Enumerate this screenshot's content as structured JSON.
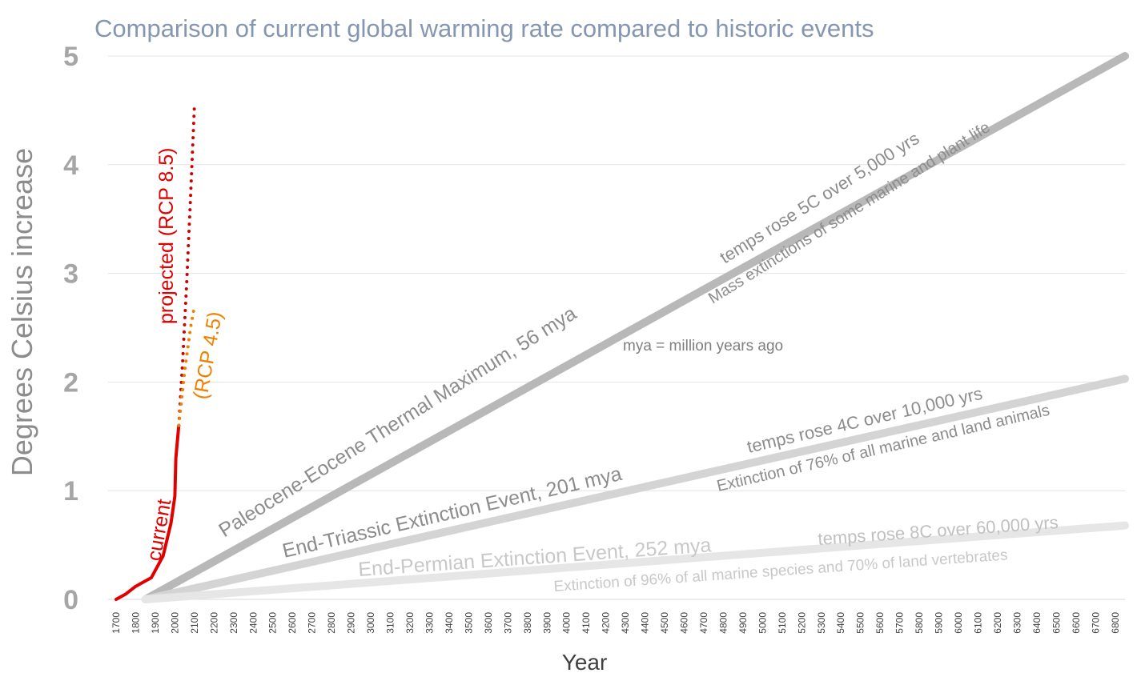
{
  "chart_data": {
    "type": "line",
    "title": "Comparison of current global warming rate compared to historic events",
    "xlabel": "Year",
    "ylabel": "Degrees Celsius increase",
    "xlim": [
      1700,
      6850
    ],
    "ylim": [
      0,
      5
    ],
    "yticks": [
      0,
      1,
      2,
      3,
      4,
      5
    ],
    "xticks": [
      "1700",
      "1800",
      "1900",
      "2000",
      "2100",
      "2200",
      "2300",
      "2400",
      "2500",
      "2600",
      "2700",
      "2800",
      "2900",
      "3000",
      "3100",
      "3200",
      "3300",
      "3400",
      "3500",
      "3600",
      "3700",
      "3800",
      "3900",
      "4000",
      "4100",
      "4200",
      "4300",
      "4400",
      "4500",
      "4600",
      "4700",
      "4800",
      "4900",
      "5000",
      "5100",
      "5200",
      "5300",
      "5400",
      "5500",
      "5600",
      "5700",
      "5800",
      "5900",
      "6000",
      "6100",
      "6200",
      "6300",
      "6400",
      "6500",
      "6600",
      "6700",
      "6800"
    ],
    "grid": true,
    "series": [
      {
        "name": "current",
        "style": "solid",
        "color": "#e00000",
        "x": [
          1700,
          1750,
          1800,
          1880,
          1940,
          1980,
          2000,
          2005,
          2020
        ],
        "y": [
          0,
          0.05,
          0.12,
          0.2,
          0.4,
          0.7,
          0.95,
          1.3,
          1.6
        ]
      },
      {
        "name": "projected (RCP 8.5)",
        "style": "dotted",
        "color": "#d00000",
        "x": [
          2020,
          2040,
          2060,
          2080,
          2100
        ],
        "y": [
          1.6,
          2.2,
          2.9,
          3.7,
          4.55
        ]
      },
      {
        "name": "(RCP 4.5)",
        "style": "dotted",
        "color": "#f08000",
        "x": [
          2020,
          2050,
          2080,
          2100
        ],
        "y": [
          1.6,
          2.1,
          2.5,
          2.7
        ]
      },
      {
        "name": "Paleocene-Eocene Thermal Maximum, 56 mya",
        "style": "solid",
        "color": "#b8b8b8",
        "x": [
          1850,
          6850
        ],
        "y": [
          0,
          5
        ]
      },
      {
        "name": "End-Triassic Extinction Event, 201 mya",
        "style": "solid",
        "color": "#d4d4d4",
        "x": [
          1850,
          6850
        ],
        "y": [
          0,
          2.03
        ]
      },
      {
        "name": "End-Permian Extinction Event, 252 mya",
        "style": "solid",
        "color": "#e6e6e6",
        "x": [
          1850,
          6850
        ],
        "y": [
          0,
          0.68
        ]
      }
    ],
    "annotations": {
      "current": "current",
      "projected": "projected (RCP 8.5)",
      "rcp45": "(RCP 4.5)",
      "petm_name": "Paleocene-Eocene Thermal Maximum, 56 mya",
      "petm_rise": "temps rose 5C over 5,000 yrs",
      "petm_effect": "Mass extinctions of some marine and plant life",
      "tri_name": "End-Triassic Extinction Event, 201 mya",
      "tri_rise": "temps rose 4C over 10,000 yrs",
      "tri_effect": "Extinction of 76% of all marine and land animals",
      "perm_name": "End-Permian Extinction Event, 252 mya",
      "perm_rise": "temps rose 8C over 60,000 yrs",
      "perm_effect": "Extinction of 96% of all marine species and 70% of land vertebrates",
      "mya_note": "mya = million years ago"
    }
  }
}
